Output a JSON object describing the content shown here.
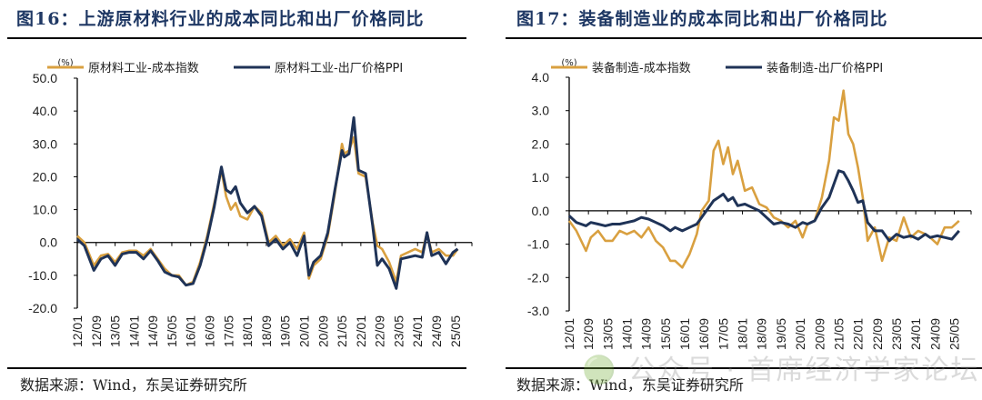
{
  "colors": {
    "cost": "#d9a040",
    "ppi": "#1f3357",
    "title": "#1f3864"
  },
  "watermark": "🟢 公众号 · 首席经济学家论坛",
  "chart_data": [
    {
      "type": "line",
      "title": "图16：上游原材料行业的成本同比和出厂价格同比",
      "source": "数据来源：Wind，东吴证券研究所",
      "unit": "(%)",
      "ylim": [
        -20,
        50
      ],
      "yticks": [
        50,
        40,
        30,
        20,
        10,
        0,
        -10,
        -20
      ],
      "ytick_labels": [
        "50.0",
        "40.0",
        "30.0",
        "20.0",
        "10.0",
        "0.0",
        "-10.0",
        "-20.0"
      ],
      "xlim": [
        "2012-01",
        "2025-12"
      ],
      "xtick_labels": [
        "12/01",
        "12/09",
        "13/05",
        "14/01",
        "14/09",
        "15/05",
        "16/01",
        "16/09",
        "17/05",
        "18/01",
        "18/09",
        "19/05",
        "20/01",
        "20/09",
        "21/05",
        "22/01",
        "22/09",
        "23/05",
        "24/01",
        "24/09",
        "25/05"
      ],
      "legend": "top-left",
      "series": [
        {
          "name": "原材料工业-成本指数",
          "color": "#d9a040",
          "x": [
            "2012-01",
            "2012-04",
            "2012-08",
            "2012-11",
            "2013-02",
            "2013-05",
            "2013-08",
            "2013-11",
            "2014-02",
            "2014-05",
            "2014-08",
            "2014-11",
            "2015-02",
            "2015-05",
            "2015-08",
            "2015-11",
            "2016-02",
            "2016-05",
            "2016-08",
            "2016-11",
            "2017-02",
            "2017-04",
            "2017-06",
            "2017-08",
            "2017-10",
            "2018-01",
            "2018-04",
            "2018-07",
            "2018-10",
            "2019-01",
            "2019-04",
            "2019-07",
            "2019-10",
            "2020-01",
            "2020-03",
            "2020-05",
            "2020-08",
            "2020-11",
            "2021-02",
            "2021-05",
            "2021-06",
            "2021-08",
            "2021-10",
            "2021-12",
            "2022-03",
            "2022-06",
            "2022-08",
            "2022-10",
            "2023-01",
            "2023-04",
            "2023-06",
            "2023-09",
            "2023-12",
            "2024-03",
            "2024-05",
            "2024-07",
            "2024-10",
            "2025-01",
            "2025-04",
            "2025-06"
          ],
          "values": [
            2,
            0,
            -7,
            -4,
            -3.5,
            -6,
            -3,
            -2.5,
            -2.5,
            -4,
            -2,
            -5,
            -8,
            -10,
            -10,
            -13,
            -12,
            -6,
            2,
            12,
            22,
            14,
            10,
            12,
            8,
            7,
            11,
            9,
            0,
            2,
            -1,
            1,
            -2,
            3,
            -11,
            -7,
            -5,
            2,
            15,
            30,
            27,
            28,
            32,
            21,
            20,
            6,
            -1,
            -2,
            -6,
            -12,
            -4,
            -3,
            -2,
            -3,
            3,
            -3,
            -2,
            -4,
            -4,
            -2
          ]
        },
        {
          "name": "原材料工业-出厂价格PPI",
          "color": "#1f3357",
          "x": [
            "2012-01",
            "2012-04",
            "2012-08",
            "2012-11",
            "2013-02",
            "2013-05",
            "2013-08",
            "2013-11",
            "2014-02",
            "2014-05",
            "2014-08",
            "2014-11",
            "2015-02",
            "2015-05",
            "2015-08",
            "2015-11",
            "2016-02",
            "2016-05",
            "2016-08",
            "2016-11",
            "2017-02",
            "2017-04",
            "2017-06",
            "2017-08",
            "2017-10",
            "2018-01",
            "2018-04",
            "2018-07",
            "2018-10",
            "2019-01",
            "2019-04",
            "2019-07",
            "2019-10",
            "2020-01",
            "2020-03",
            "2020-05",
            "2020-08",
            "2020-11",
            "2021-02",
            "2021-05",
            "2021-06",
            "2021-08",
            "2021-10",
            "2021-12",
            "2022-03",
            "2022-06",
            "2022-08",
            "2022-10",
            "2023-01",
            "2023-04",
            "2023-06",
            "2023-09",
            "2023-12",
            "2024-03",
            "2024-05",
            "2024-07",
            "2024-10",
            "2025-01",
            "2025-04",
            "2025-06"
          ],
          "values": [
            1,
            -1,
            -8.5,
            -5,
            -4,
            -7,
            -3.5,
            -3,
            -3,
            -5,
            -2.5,
            -5.5,
            -9,
            -10,
            -10.5,
            -13,
            -12.5,
            -7,
            1,
            11,
            23,
            16,
            15,
            17,
            12,
            9,
            11,
            8,
            -1,
            1,
            -2,
            0,
            -4,
            2,
            -10,
            -6,
            -4,
            3,
            16,
            28,
            26,
            27,
            38,
            22,
            21,
            5,
            -7,
            -5,
            -8,
            -14,
            -5,
            -4.5,
            -4,
            -4.5,
            3,
            -4,
            -3,
            -6.5,
            -3,
            -2
          ]
        }
      ]
    },
    {
      "type": "line",
      "title": "图17：装备制造业的成本同比和出厂价格同比",
      "source": "数据来源：Wind，东吴证券研究所",
      "unit": "(%)",
      "ylim": [
        -3,
        4
      ],
      "yticks": [
        4,
        3,
        2,
        1,
        0,
        -1,
        -2,
        -3
      ],
      "ytick_labels": [
        "4.0",
        "3.0",
        "2.0",
        "1.0",
        "0.0",
        "-1.0",
        "-2.0",
        "-3.0"
      ],
      "xlim": [
        "2012-01",
        "2025-12"
      ],
      "xtick_labels": [
        "12/01",
        "12/09",
        "13/05",
        "14/01",
        "14/09",
        "15/05",
        "16/01",
        "16/09",
        "17/05",
        "18/01",
        "18/09",
        "19/05",
        "20/01",
        "20/09",
        "21/05",
        "22/01",
        "22/09",
        "23/05",
        "24/01",
        "24/09",
        "25/05"
      ],
      "legend": "top-left",
      "series": [
        {
          "name": "装备制造-成本指数",
          "color": "#d9a040",
          "x": [
            "2012-01",
            "2012-04",
            "2012-08",
            "2012-10",
            "2013-01",
            "2013-04",
            "2013-07",
            "2013-10",
            "2014-01",
            "2014-04",
            "2014-07",
            "2014-10",
            "2015-01",
            "2015-04",
            "2015-07",
            "2015-09",
            "2015-12",
            "2016-03",
            "2016-06",
            "2016-08",
            "2016-11",
            "2017-01",
            "2017-03",
            "2017-05",
            "2017-07",
            "2017-09",
            "2017-11",
            "2018-02",
            "2018-05",
            "2018-08",
            "2018-11",
            "2019-02",
            "2019-05",
            "2019-08",
            "2019-11",
            "2020-02",
            "2020-04",
            "2020-07",
            "2020-10",
            "2021-01",
            "2021-03",
            "2021-05",
            "2021-07",
            "2021-09",
            "2021-11",
            "2022-01",
            "2022-03",
            "2022-05",
            "2022-08",
            "2022-11",
            "2023-02",
            "2023-05",
            "2023-08",
            "2023-11",
            "2024-02",
            "2024-05",
            "2024-07",
            "2024-10",
            "2025-01",
            "2025-04",
            "2025-07"
          ],
          "values": [
            -0.3,
            -0.6,
            -1.2,
            -0.8,
            -0.6,
            -0.9,
            -0.9,
            -0.6,
            -0.7,
            -0.6,
            -0.8,
            -0.5,
            -0.9,
            -1.1,
            -1.5,
            -1.5,
            -1.7,
            -1.3,
            -0.7,
            0,
            0.3,
            1.8,
            2.1,
            1.4,
            1.9,
            1.1,
            1.5,
            0.6,
            0.7,
            0.2,
            0.1,
            -0.2,
            -0.3,
            -0.5,
            -0.3,
            -0.8,
            -0.4,
            -0.3,
            0.4,
            1.5,
            2.8,
            2.7,
            3.6,
            2.3,
            2.0,
            1.3,
            0.4,
            -0.9,
            -0.5,
            -1.5,
            -0.8,
            -0.9,
            -0.2,
            -0.8,
            -0.6,
            -0.7,
            -0.8,
            -1.0,
            -0.5,
            -0.5,
            -0.3
          ]
        },
        {
          "name": "装备制造-出厂价格PPI",
          "color": "#1f3357",
          "x": [
            "2012-01",
            "2012-04",
            "2012-08",
            "2012-10",
            "2013-01",
            "2013-04",
            "2013-07",
            "2013-10",
            "2014-01",
            "2014-04",
            "2014-07",
            "2014-10",
            "2015-01",
            "2015-04",
            "2015-07",
            "2015-09",
            "2015-12",
            "2016-03",
            "2016-06",
            "2016-08",
            "2016-11",
            "2017-01",
            "2017-03",
            "2017-05",
            "2017-07",
            "2017-09",
            "2017-11",
            "2018-02",
            "2018-05",
            "2018-08",
            "2018-11",
            "2019-02",
            "2019-05",
            "2019-08",
            "2019-11",
            "2020-02",
            "2020-04",
            "2020-07",
            "2020-10",
            "2021-01",
            "2021-03",
            "2021-05",
            "2021-07",
            "2021-09",
            "2021-11",
            "2022-01",
            "2022-03",
            "2022-05",
            "2022-08",
            "2022-11",
            "2023-02",
            "2023-05",
            "2023-08",
            "2023-11",
            "2024-02",
            "2024-05",
            "2024-07",
            "2024-10",
            "2025-01",
            "2025-04",
            "2025-07"
          ],
          "values": [
            -0.15,
            -0.35,
            -0.45,
            -0.35,
            -0.4,
            -0.45,
            -0.4,
            -0.4,
            -0.35,
            -0.3,
            -0.2,
            -0.25,
            -0.35,
            -0.45,
            -0.6,
            -0.5,
            -0.6,
            -0.5,
            -0.4,
            -0.2,
            0.1,
            0.3,
            0.4,
            0.5,
            0.3,
            0.4,
            0.15,
            0.2,
            0.1,
            0,
            -0.2,
            -0.4,
            -0.35,
            -0.4,
            -0.5,
            -0.35,
            -0.4,
            -0.3,
            0.1,
            0.4,
            0.8,
            1.2,
            1.15,
            0.9,
            0.6,
            0.25,
            0.3,
            -0.35,
            -0.6,
            -0.6,
            -0.9,
            -0.7,
            -0.8,
            -0.75,
            -0.85,
            -0.7,
            -0.8,
            -0.75,
            -0.8,
            -0.85,
            -0.6
          ]
        }
      ]
    }
  ]
}
